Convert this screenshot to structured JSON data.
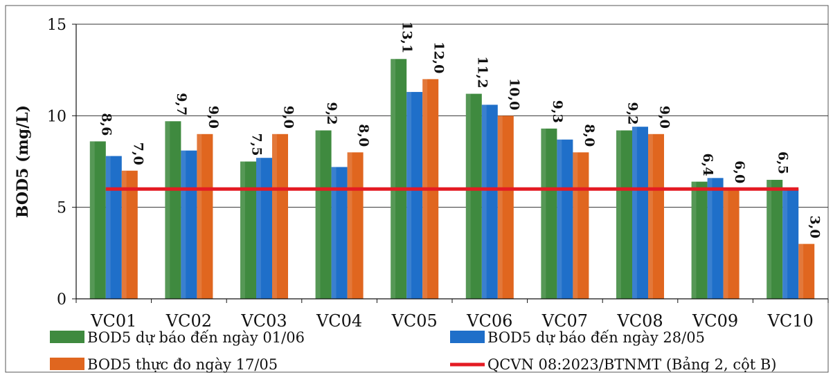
{
  "chart_data": {
    "type": "bar",
    "ylabel": "BOD5 (mg/L)",
    "ylim": [
      0,
      15
    ],
    "yticks": [
      "0",
      "5",
      "10",
      "15"
    ],
    "grid": true,
    "legend_position": "bottom",
    "categories": [
      "VC01",
      "VC02",
      "VC03",
      "VC04",
      "VC05",
      "VC06",
      "VC07",
      "VC08",
      "VC09",
      "VC10"
    ],
    "series": [
      {
        "name": "BOD5 dự báo đến ngày 01/06",
        "color": "#3f8a3f",
        "values": [
          8.6,
          9.7,
          7.5,
          9.2,
          13.1,
          11.2,
          9.3,
          9.2,
          6.4,
          6.5
        ],
        "labels": [
          "8,6",
          "9,7",
          "7,5",
          "9,2",
          "13,1",
          "11,2",
          "9,3",
          "9,2",
          "6,4",
          "6,5"
        ]
      },
      {
        "name": "BOD5 dự báo đến ngày 28/05",
        "color": "#1f6fc9",
        "values": [
          7.8,
          8.1,
          7.7,
          7.2,
          11.3,
          10.6,
          8.7,
          9.4,
          6.6,
          6.0
        ],
        "labels": [
          "",
          "",
          "",
          "",
          "",
          "",
          "",
          "",
          "",
          ""
        ]
      },
      {
        "name": "BOD5 thực đo ngày 17/05",
        "color": "#e0661f",
        "values": [
          7.0,
          9.0,
          9.0,
          8.0,
          12.0,
          10.0,
          8.0,
          9.0,
          6.0,
          3.0
        ],
        "labels": [
          "7,0",
          "9,0",
          "9,0",
          "8,0",
          "12,0",
          "10,0",
          "8,0",
          "9,0",
          "6,0",
          "3,0"
        ]
      }
    ],
    "reference_line": {
      "name": "QCVN 08:2023/BTNMT (Bảng 2, cột B)",
      "value": 6,
      "color": "#e41b23"
    }
  }
}
